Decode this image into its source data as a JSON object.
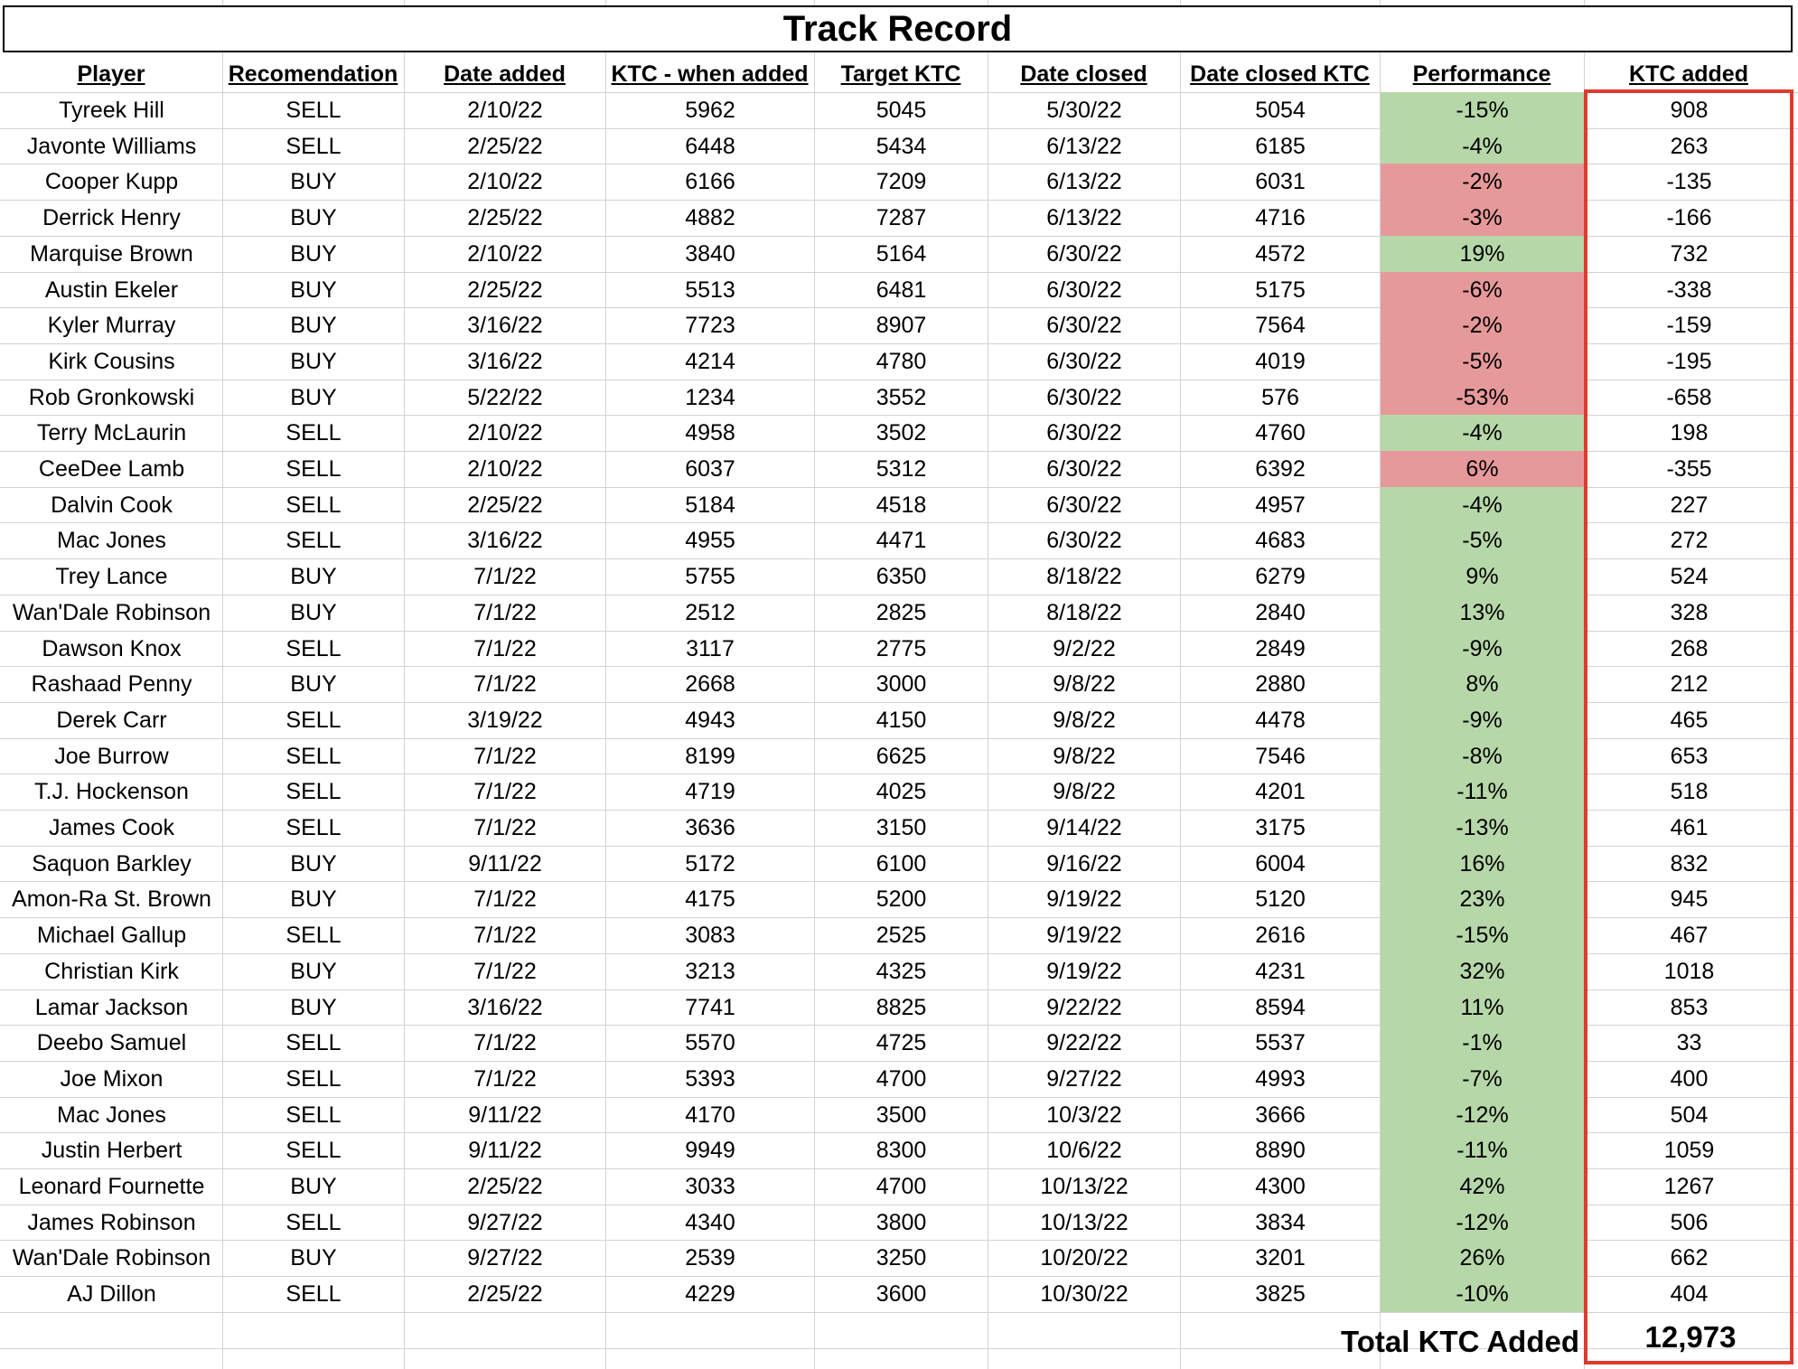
{
  "title": "Track Record",
  "headers": [
    "Player",
    "Recomendation",
    "Date added",
    "KTC - when added",
    "Target KTC",
    "Date closed",
    "Date closed KTC",
    "Performance",
    "KTC added"
  ],
  "rows": [
    {
      "player": "Tyreek Hill",
      "rec": "SELL",
      "date_added": "2/10/22",
      "ktc_added_at": "5962",
      "target": "5045",
      "date_closed": "5/30/22",
      "closed_ktc": "5054",
      "performance": "-15%",
      "perf_status": "good",
      "ktc_gain": "908"
    },
    {
      "player": "Javonte Williams",
      "rec": "SELL",
      "date_added": "2/25/22",
      "ktc_added_at": "6448",
      "target": "5434",
      "date_closed": "6/13/22",
      "closed_ktc": "6185",
      "performance": "-4%",
      "perf_status": "good",
      "ktc_gain": "263"
    },
    {
      "player": "Cooper Kupp",
      "rec": "BUY",
      "date_added": "2/10/22",
      "ktc_added_at": "6166",
      "target": "7209",
      "date_closed": "6/13/22",
      "closed_ktc": "6031",
      "performance": "-2%",
      "perf_status": "bad",
      "ktc_gain": "-135"
    },
    {
      "player": "Derrick Henry",
      "rec": "BUY",
      "date_added": "2/25/22",
      "ktc_added_at": "4882",
      "target": "7287",
      "date_closed": "6/13/22",
      "closed_ktc": "4716",
      "performance": "-3%",
      "perf_status": "bad",
      "ktc_gain": "-166"
    },
    {
      "player": "Marquise Brown",
      "rec": "BUY",
      "date_added": "2/10/22",
      "ktc_added_at": "3840",
      "target": "5164",
      "date_closed": "6/30/22",
      "closed_ktc": "4572",
      "performance": "19%",
      "perf_status": "good",
      "ktc_gain": "732"
    },
    {
      "player": "Austin Ekeler",
      "rec": "BUY",
      "date_added": "2/25/22",
      "ktc_added_at": "5513",
      "target": "6481",
      "date_closed": "6/30/22",
      "closed_ktc": "5175",
      "performance": "-6%",
      "perf_status": "bad",
      "ktc_gain": "-338"
    },
    {
      "player": "Kyler Murray",
      "rec": "BUY",
      "date_added": "3/16/22",
      "ktc_added_at": "7723",
      "target": "8907",
      "date_closed": "6/30/22",
      "closed_ktc": "7564",
      "performance": "-2%",
      "perf_status": "bad",
      "ktc_gain": "-159"
    },
    {
      "player": "Kirk Cousins",
      "rec": "BUY",
      "date_added": "3/16/22",
      "ktc_added_at": "4214",
      "target": "4780",
      "date_closed": "6/30/22",
      "closed_ktc": "4019",
      "performance": "-5%",
      "perf_status": "bad",
      "ktc_gain": "-195"
    },
    {
      "player": "Rob Gronkowski",
      "rec": "BUY",
      "date_added": "5/22/22",
      "ktc_added_at": "1234",
      "target": "3552",
      "date_closed": "6/30/22",
      "closed_ktc": "576",
      "performance": "-53%",
      "perf_status": "bad",
      "ktc_gain": "-658"
    },
    {
      "player": "Terry McLaurin",
      "rec": "SELL",
      "date_added": "2/10/22",
      "ktc_added_at": "4958",
      "target": "3502",
      "date_closed": "6/30/22",
      "closed_ktc": "4760",
      "performance": "-4%",
      "perf_status": "good",
      "ktc_gain": "198"
    },
    {
      "player": "CeeDee Lamb",
      "rec": "SELL",
      "date_added": "2/10/22",
      "ktc_added_at": "6037",
      "target": "5312",
      "date_closed": "6/30/22",
      "closed_ktc": "6392",
      "performance": "6%",
      "perf_status": "bad",
      "ktc_gain": "-355"
    },
    {
      "player": "Dalvin Cook",
      "rec": "SELL",
      "date_added": "2/25/22",
      "ktc_added_at": "5184",
      "target": "4518",
      "date_closed": "6/30/22",
      "closed_ktc": "4957",
      "performance": "-4%",
      "perf_status": "good",
      "ktc_gain": "227"
    },
    {
      "player": "Mac Jones",
      "rec": "SELL",
      "date_added": "3/16/22",
      "ktc_added_at": "4955",
      "target": "4471",
      "date_closed": "6/30/22",
      "closed_ktc": "4683",
      "performance": "-5%",
      "perf_status": "good",
      "ktc_gain": "272"
    },
    {
      "player": "Trey Lance",
      "rec": "BUY",
      "date_added": "7/1/22",
      "ktc_added_at": "5755",
      "target": "6350",
      "date_closed": "8/18/22",
      "closed_ktc": "6279",
      "performance": "9%",
      "perf_status": "good",
      "ktc_gain": "524"
    },
    {
      "player": "Wan'Dale Robinson",
      "rec": "BUY",
      "date_added": "7/1/22",
      "ktc_added_at": "2512",
      "target": "2825",
      "date_closed": "8/18/22",
      "closed_ktc": "2840",
      "performance": "13%",
      "perf_status": "good",
      "ktc_gain": "328"
    },
    {
      "player": "Dawson Knox",
      "rec": "SELL",
      "date_added": "7/1/22",
      "ktc_added_at": "3117",
      "target": "2775",
      "date_closed": "9/2/22",
      "closed_ktc": "2849",
      "performance": "-9%",
      "perf_status": "good",
      "ktc_gain": "268"
    },
    {
      "player": "Rashaad Penny",
      "rec": "BUY",
      "date_added": "7/1/22",
      "ktc_added_at": "2668",
      "target": "3000",
      "date_closed": "9/8/22",
      "closed_ktc": "2880",
      "performance": "8%",
      "perf_status": "good",
      "ktc_gain": "212"
    },
    {
      "player": "Derek Carr",
      "rec": "SELL",
      "date_added": "3/19/22",
      "ktc_added_at": "4943",
      "target": "4150",
      "date_closed": "9/8/22",
      "closed_ktc": "4478",
      "performance": "-9%",
      "perf_status": "good",
      "ktc_gain": "465"
    },
    {
      "player": "Joe Burrow",
      "rec": "SELL",
      "date_added": "7/1/22",
      "ktc_added_at": "8199",
      "target": "6625",
      "date_closed": "9/8/22",
      "closed_ktc": "7546",
      "performance": "-8%",
      "perf_status": "good",
      "ktc_gain": "653"
    },
    {
      "player": "T.J. Hockenson",
      "rec": "SELL",
      "date_added": "7/1/22",
      "ktc_added_at": "4719",
      "target": "4025",
      "date_closed": "9/8/22",
      "closed_ktc": "4201",
      "performance": "-11%",
      "perf_status": "good",
      "ktc_gain": "518"
    },
    {
      "player": "James Cook",
      "rec": "SELL",
      "date_added": "7/1/22",
      "ktc_added_at": "3636",
      "target": "3150",
      "date_closed": "9/14/22",
      "closed_ktc": "3175",
      "performance": "-13%",
      "perf_status": "good",
      "ktc_gain": "461"
    },
    {
      "player": "Saquon Barkley",
      "rec": "BUY",
      "date_added": "9/11/22",
      "ktc_added_at": "5172",
      "target": "6100",
      "date_closed": "9/16/22",
      "closed_ktc": "6004",
      "performance": "16%",
      "perf_status": "good",
      "ktc_gain": "832"
    },
    {
      "player": "Amon-Ra St. Brown",
      "rec": "BUY",
      "date_added": "7/1/22",
      "ktc_added_at": "4175",
      "target": "5200",
      "date_closed": "9/19/22",
      "closed_ktc": "5120",
      "performance": "23%",
      "perf_status": "good",
      "ktc_gain": "945"
    },
    {
      "player": "Michael Gallup",
      "rec": "SELL",
      "date_added": "7/1/22",
      "ktc_added_at": "3083",
      "target": "2525",
      "date_closed": "9/19/22",
      "closed_ktc": "2616",
      "performance": "-15%",
      "perf_status": "good",
      "ktc_gain": "467"
    },
    {
      "player": "Christian Kirk",
      "rec": "BUY",
      "date_added": "7/1/22",
      "ktc_added_at": "3213",
      "target": "4325",
      "date_closed": "9/19/22",
      "closed_ktc": "4231",
      "performance": "32%",
      "perf_status": "good",
      "ktc_gain": "1018"
    },
    {
      "player": "Lamar Jackson",
      "rec": "BUY",
      "date_added": "3/16/22",
      "ktc_added_at": "7741",
      "target": "8825",
      "date_closed": "9/22/22",
      "closed_ktc": "8594",
      "performance": "11%",
      "perf_status": "good",
      "ktc_gain": "853"
    },
    {
      "player": "Deebo Samuel",
      "rec": "SELL",
      "date_added": "7/1/22",
      "ktc_added_at": "5570",
      "target": "4725",
      "date_closed": "9/22/22",
      "closed_ktc": "5537",
      "performance": "-1%",
      "perf_status": "good",
      "ktc_gain": "33"
    },
    {
      "player": "Joe Mixon",
      "rec": "SELL",
      "date_added": "7/1/22",
      "ktc_added_at": "5393",
      "target": "4700",
      "date_closed": "9/27/22",
      "closed_ktc": "4993",
      "performance": "-7%",
      "perf_status": "good",
      "ktc_gain": "400"
    },
    {
      "player": "Mac Jones",
      "rec": "SELL",
      "date_added": "9/11/22",
      "ktc_added_at": "4170",
      "target": "3500",
      "date_closed": "10/3/22",
      "closed_ktc": "3666",
      "performance": "-12%",
      "perf_status": "good",
      "ktc_gain": "504"
    },
    {
      "player": "Justin Herbert",
      "rec": "SELL",
      "date_added": "9/11/22",
      "ktc_added_at": "9949",
      "target": "8300",
      "date_closed": "10/6/22",
      "closed_ktc": "8890",
      "performance": "-11%",
      "perf_status": "good",
      "ktc_gain": "1059"
    },
    {
      "player": "Leonard Fournette",
      "rec": "BUY",
      "date_added": "2/25/22",
      "ktc_added_at": "3033",
      "target": "4700",
      "date_closed": "10/13/22",
      "closed_ktc": "4300",
      "performance": "42%",
      "perf_status": "good",
      "ktc_gain": "1267"
    },
    {
      "player": "James Robinson",
      "rec": "SELL",
      "date_added": "9/27/22",
      "ktc_added_at": "4340",
      "target": "3800",
      "date_closed": "10/13/22",
      "closed_ktc": "3834",
      "performance": "-12%",
      "perf_status": "good",
      "ktc_gain": "506"
    },
    {
      "player": "Wan'Dale Robinson",
      "rec": "BUY",
      "date_added": "9/27/22",
      "ktc_added_at": "2539",
      "target": "3250",
      "date_closed": "10/20/22",
      "closed_ktc": "3201",
      "performance": "26%",
      "perf_status": "good",
      "ktc_gain": "662"
    },
    {
      "player": "AJ Dillon",
      "rec": "SELL",
      "date_added": "2/25/22",
      "ktc_added_at": "4229",
      "target": "3600",
      "date_closed": "10/30/22",
      "closed_ktc": "3825",
      "performance": "-10%",
      "perf_status": "good",
      "ktc_gain": "404"
    }
  ],
  "total": {
    "label": "Total KTC Added",
    "value": "12,973"
  },
  "colors": {
    "performance_good": "#b6d7a8",
    "performance_bad": "#e6999a",
    "highlight_border": "#e03a2f",
    "gridline": "#d3d3d3"
  }
}
